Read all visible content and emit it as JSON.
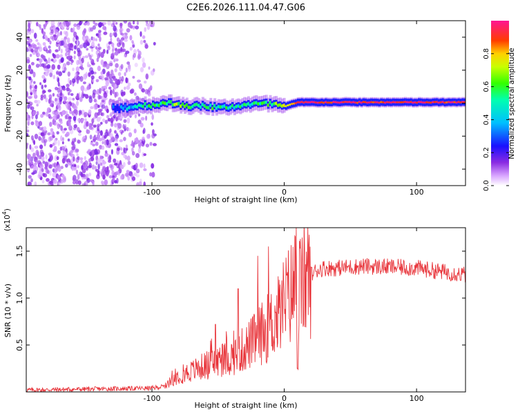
{
  "title": "C2E6.2026.111.04.47.G06",
  "colors": {
    "snr_line": "#e8343a",
    "axis": "#000000",
    "background": "#ffffff"
  },
  "chart_data": [
    {
      "type": "heatmap",
      "name": "spectrogram",
      "xlabel": "Height of straight line (km)",
      "ylabel": "Frequency (Hz)",
      "xlim": [
        -195,
        137
      ],
      "ylim": [
        -50,
        50
      ],
      "xticks": [
        -100,
        0,
        100
      ],
      "xtick_labels": [
        "-100",
        "0",
        "100"
      ],
      "yticks": [
        -40,
        -20,
        0,
        20,
        40
      ],
      "ytick_labels": [
        "-40",
        "-20",
        "0",
        "20",
        "40"
      ],
      "signal_trace": {
        "x_km": [
          -130,
          -120,
          -110,
          -100,
          -90,
          -80,
          -70,
          -60,
          -50,
          -40,
          -30,
          -20,
          -10,
          0,
          10,
          20,
          40,
          60,
          80,
          100,
          120,
          137
        ],
        "freq_hz": [
          -3,
          -2.5,
          -1.5,
          -1,
          0,
          -0.5,
          -2,
          -1.5,
          -3,
          -2,
          -1,
          -0.5,
          -0.5,
          -2,
          0.5,
          0.5,
          0.5,
          0.5,
          0.5,
          0.5,
          0.5,
          0.5
        ],
        "amplitude": [
          0.25,
          0.35,
          0.45,
          0.55,
          0.6,
          0.65,
          0.6,
          0.55,
          0.55,
          0.5,
          0.5,
          0.55,
          0.6,
          0.8,
          0.95,
          0.95,
          0.95,
          0.95,
          0.95,
          0.95,
          0.95,
          0.95
        ]
      },
      "noise_region_x_km": [
        -195,
        -97
      ]
    },
    {
      "type": "colorbar",
      "name": "amplitude-colorbar",
      "label": "Normalized spectral amplitude",
      "range": [
        0,
        1
      ],
      "ticks": [
        0,
        0.2,
        0.4,
        0.6,
        0.8
      ],
      "tick_labels": [
        "0.0",
        "0.2",
        "0.4",
        "0.6",
        "0.8"
      ]
    },
    {
      "type": "line",
      "name": "snr",
      "xlabel": "Height of straight line (km)",
      "ylabel": "SNR (10 * v/v)",
      "scale_label": "(x10",
      "scale_exponent": "4",
      "xlim": [
        -195,
        137
      ],
      "ylim": [
        0,
        17500
      ],
      "xticks": [
        -100,
        0,
        100
      ],
      "xtick_labels": [
        "-100",
        "0",
        "100"
      ],
      "yticks": [
        5000,
        10000,
        15000
      ],
      "ytick_labels": [
        "0.5",
        "1.0",
        "1.5"
      ],
      "envelope": {
        "x_km": [
          -195,
          -100,
          -90,
          -85,
          -80,
          -70,
          -60,
          -50,
          -40,
          -30,
          -20,
          -15,
          -10,
          -5,
          0,
          5,
          8,
          9,
          10,
          12,
          15,
          20,
          25,
          30,
          40,
          50,
          60,
          80,
          100,
          120,
          137
        ],
        "snr": [
          200,
          400,
          600,
          1200,
          1800,
          2200,
          2800,
          3200,
          3700,
          4600,
          5800,
          6500,
          7200,
          8000,
          9500,
          10500,
          11500,
          9000,
          3000,
          11000,
          11800,
          12500,
          13000,
          13200,
          13200,
          13300,
          13400,
          13300,
          13200,
          12800,
          12500
        ]
      },
      "spikes": [
        {
          "x_km": -20,
          "snr": 14500
        },
        {
          "x_km": -12,
          "snr": 15500
        },
        {
          "x_km": 9,
          "snr": 17500
        },
        {
          "x_km": 10,
          "snr": 2500
        },
        {
          "x_km": -35,
          "snr": 11000
        },
        {
          "x_km": -52,
          "snr": 7200
        }
      ]
    }
  ]
}
